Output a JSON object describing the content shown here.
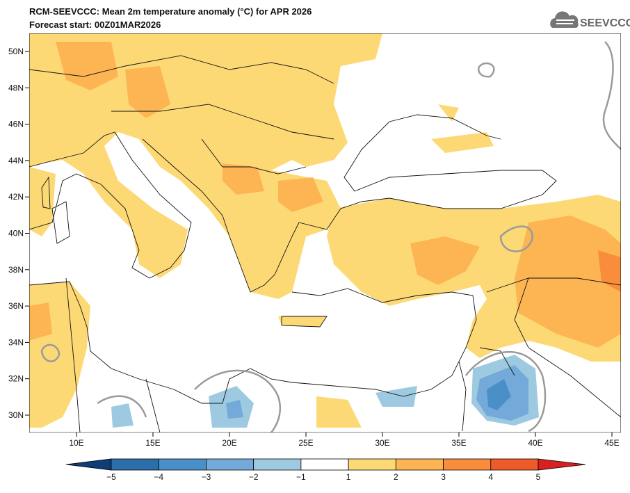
{
  "header": {
    "title": "RCM-SEEVCCC: Mean 2m temperature anomaly (°C) for APR 2026",
    "subtitle": "Forecast start: 00Z01MAR2026",
    "logo": "SEEVCCC"
  },
  "map": {
    "lat_labels": [
      "50N",
      "48N",
      "46N",
      "44N",
      "42N",
      "40N",
      "38N",
      "36N",
      "34N",
      "32N",
      "30N"
    ],
    "lon_labels": [
      "10E",
      "15E",
      "20E",
      "25E",
      "30E",
      "35E",
      "40E",
      "45E"
    ]
  },
  "colorbar": {
    "labels": [
      "−5",
      "−4",
      "−3",
      "−2",
      "−1",
      "1",
      "2",
      "3",
      "4",
      "5"
    ]
  }
}
